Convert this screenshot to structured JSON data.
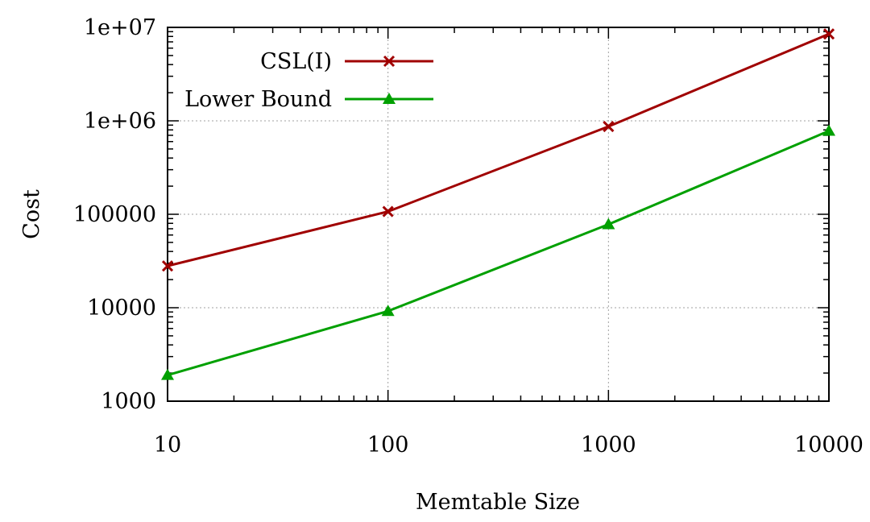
{
  "chart_data": {
    "type": "line",
    "xscale": "log",
    "yscale": "log",
    "xlabel": "Memtable Size",
    "ylabel": "Cost",
    "xlim": [
      10,
      10000
    ],
    "ylim": [
      1000,
      10000000
    ],
    "x_ticks": [
      "10",
      "100",
      "1000",
      "10000"
    ],
    "y_ticks": [
      "1000",
      "10000",
      "100000",
      "1e+06",
      "1e+07"
    ],
    "grid": true,
    "legend_position": "top-left",
    "x": [
      10,
      100,
      1000,
      10000
    ],
    "series": [
      {
        "name": "CSL(I)",
        "values": [
          28000,
          107000,
          870000,
          8500000
        ],
        "color": "#a00000",
        "marker": "x"
      },
      {
        "name": "Lower Bound",
        "values": [
          1900,
          9200,
          78000,
          780000
        ],
        "color": "#00a000",
        "marker": "triangle"
      }
    ]
  }
}
